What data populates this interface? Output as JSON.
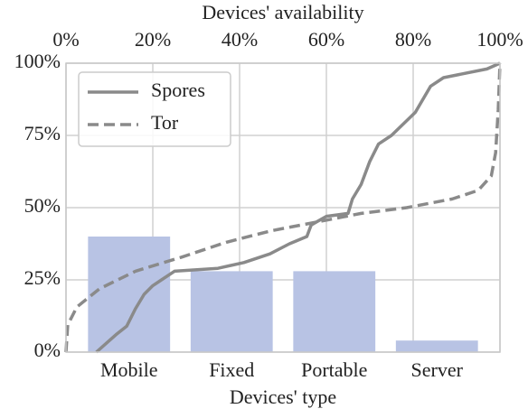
{
  "chart_data": [
    {
      "type": "bar",
      "xlabel": "Devices' type",
      "categories": [
        "Mobile",
        "Fixed",
        "Portable",
        "Server"
      ],
      "values": [
        40,
        28,
        28,
        4
      ],
      "color": "#b8c3e4",
      "ylim": [
        0,
        100
      ],
      "yticks": [
        {
          "value": 0,
          "label": "0%"
        },
        {
          "value": 25,
          "label": "25%"
        },
        {
          "value": 50,
          "label": "50%"
        },
        {
          "value": 75,
          "label": "75%"
        },
        {
          "value": 100,
          "label": "100%"
        }
      ],
      "grid": true
    },
    {
      "type": "line",
      "xlabel": "Devices' availability",
      "xlim": [
        0,
        100
      ],
      "xticks": [
        {
          "value": 0,
          "label": "0%"
        },
        {
          "value": 20,
          "label": "20%"
        },
        {
          "value": 40,
          "label": "40%"
        },
        {
          "value": 60,
          "label": "60%"
        },
        {
          "value": 80,
          "label": "80%"
        },
        {
          "value": 100,
          "label": "100%"
        }
      ],
      "ylim": [
        0,
        100
      ],
      "grid": true,
      "legend": "upper left",
      "series": [
        {
          "name": "Spores",
          "color": "#8a8a8a",
          "linestyle": "solid",
          "x": [
            7,
            10,
            11.5,
            14,
            16,
            18,
            20,
            22,
            25,
            35,
            41,
            47,
            51.5,
            55.5,
            56.5,
            60,
            65,
            66,
            68,
            70,
            72,
            75,
            80.5,
            84,
            87,
            97,
            100
          ],
          "values": [
            0,
            4,
            6,
            9,
            15,
            20,
            23,
            25,
            28,
            29,
            31,
            34,
            37.5,
            40,
            44,
            47,
            48,
            53,
            58,
            66,
            72,
            75,
            83,
            92,
            95,
            98,
            100
          ]
        },
        {
          "name": "Tor",
          "color": "#8a8a8a",
          "linestyle": "dashed",
          "x": [
            0,
            0.4,
            2.5,
            7.7,
            16,
            26.5,
            36.9,
            47.3,
            57.7,
            68,
            78.5,
            89,
            95,
            98,
            99,
            99.6,
            100
          ],
          "values": [
            0,
            9.4,
            15.6,
            21.9,
            28,
            32.8,
            38,
            42,
            45,
            48,
            50,
            53,
            56,
            61,
            69,
            84,
            100
          ]
        }
      ]
    }
  ]
}
